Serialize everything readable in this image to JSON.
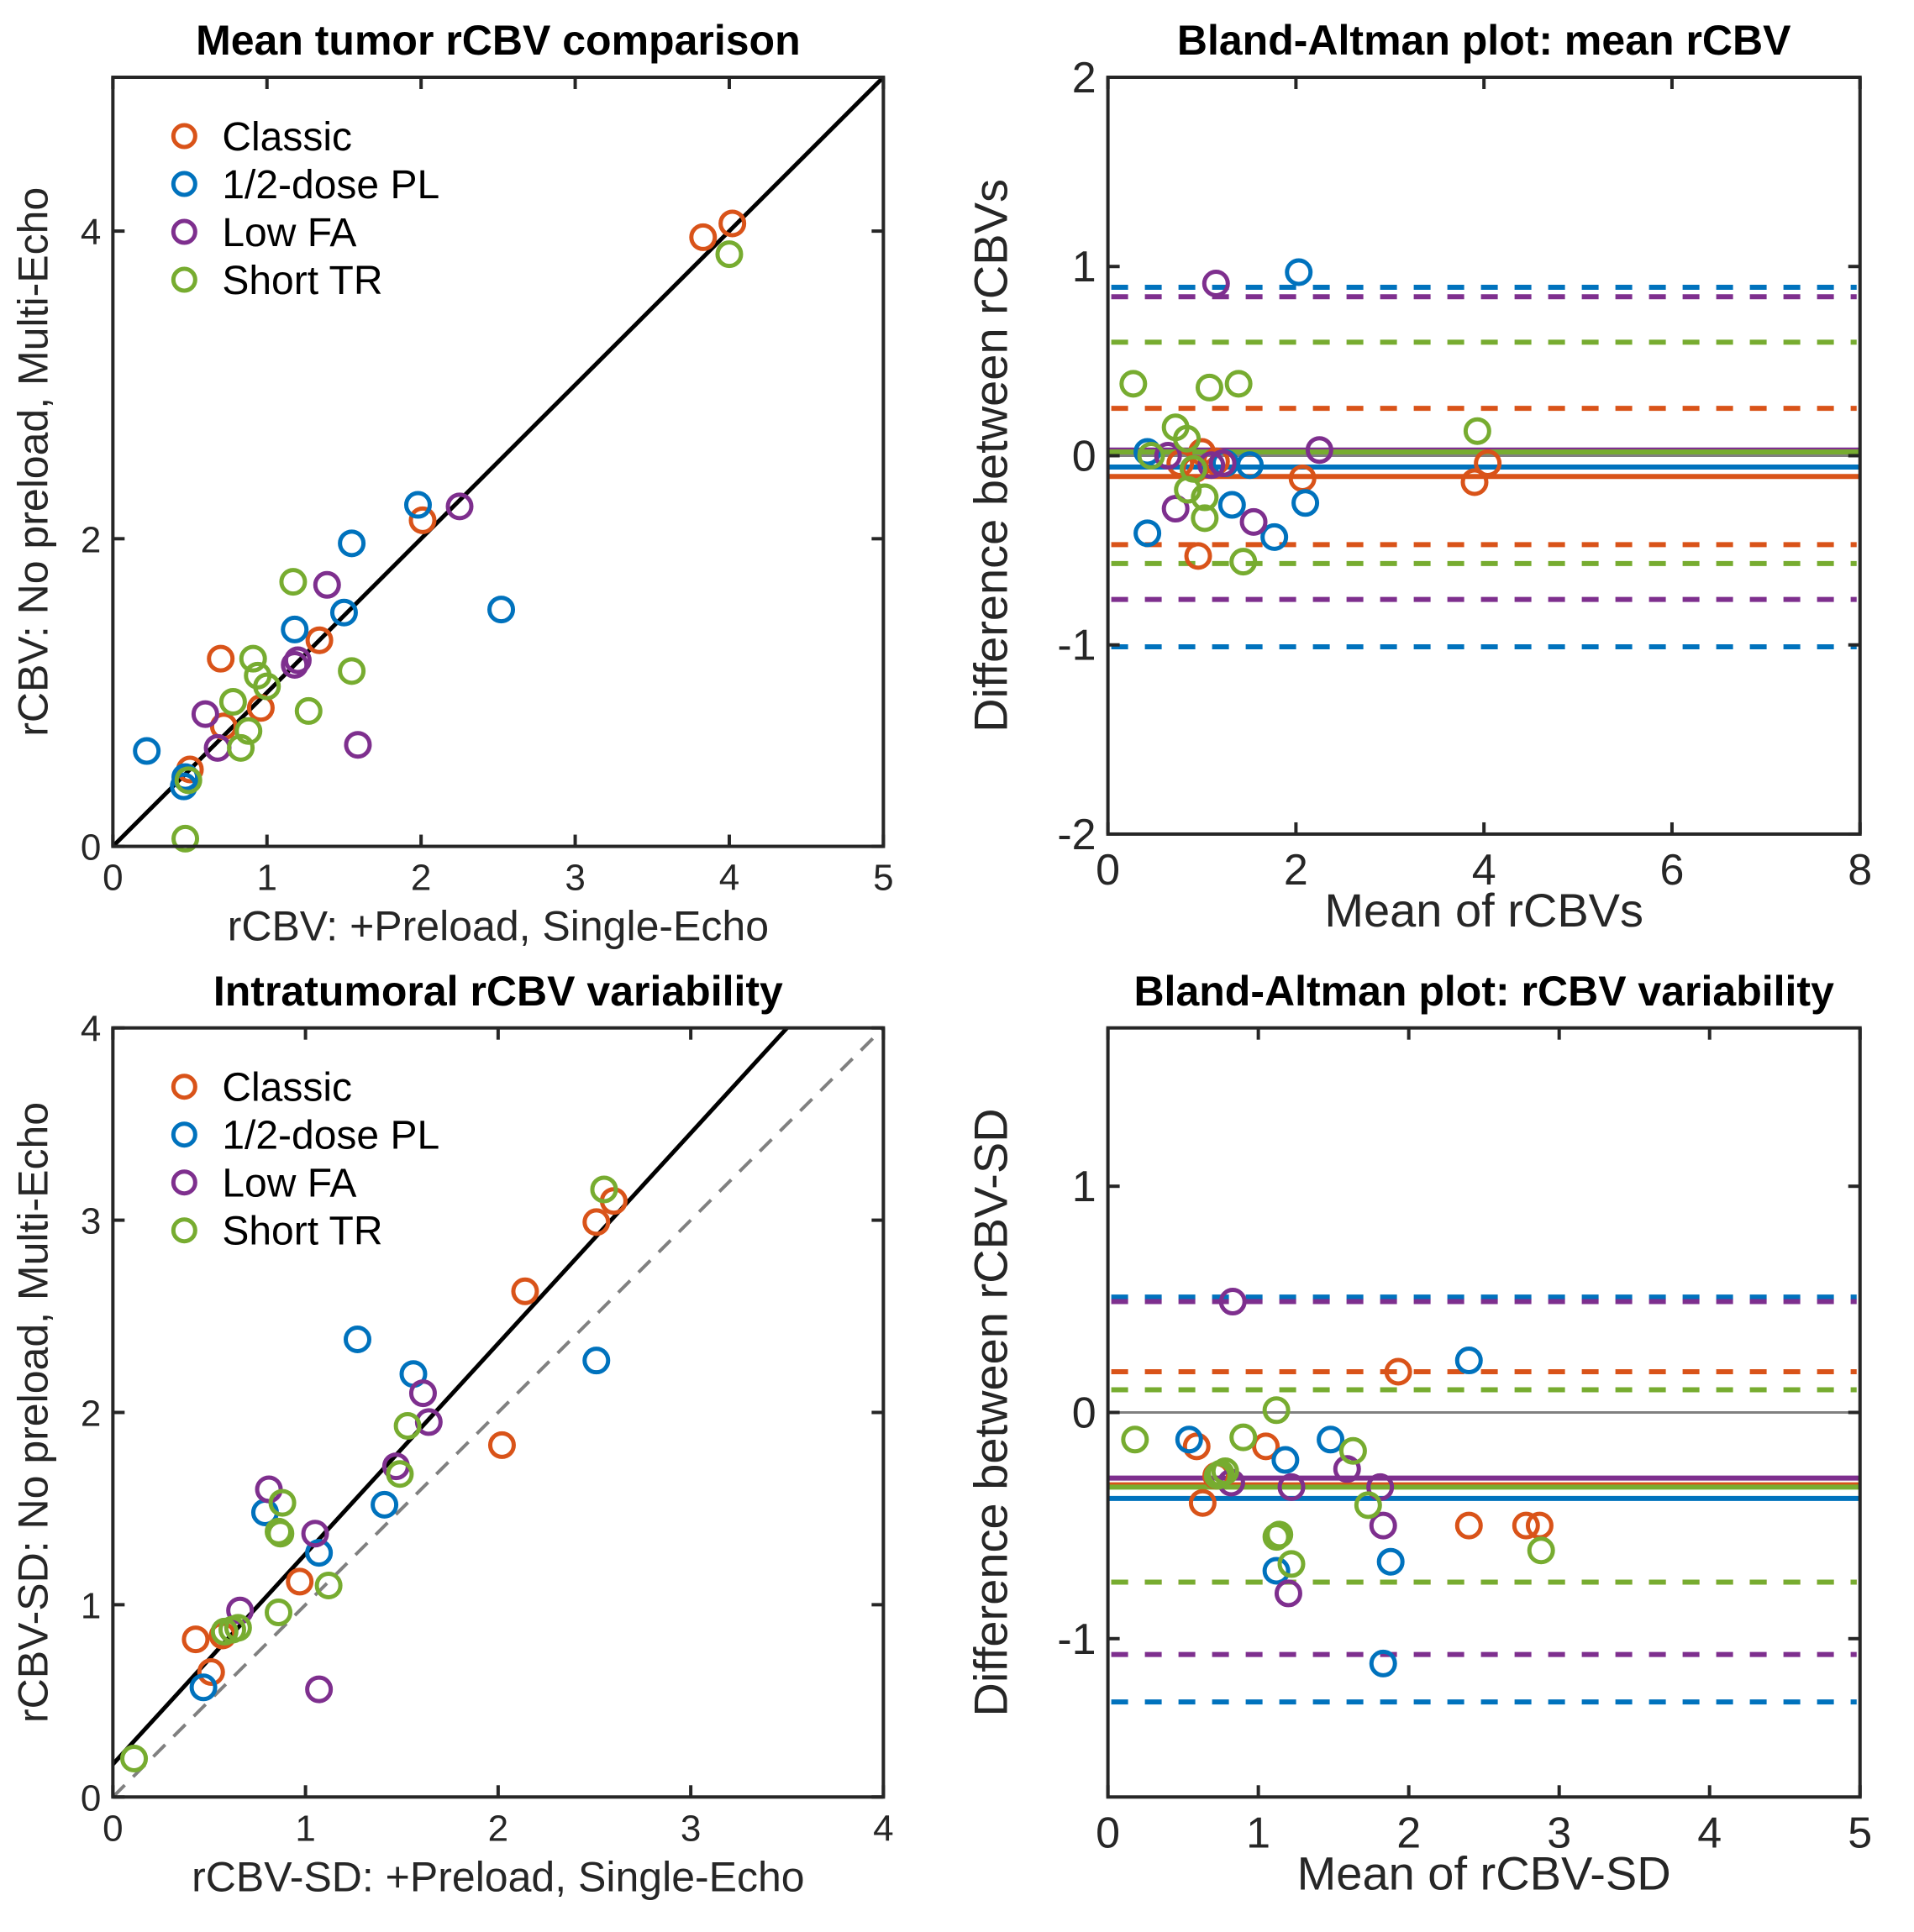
{
  "colors": {
    "Classic": "#D95319",
    "1/2-dose PL": "#0072BD",
    "Low FA": "#7E2F8E",
    "Short TR": "#77AC30",
    "axis": "#262626",
    "identity": "#808080",
    "fit": "#000000"
  },
  "chart_data": [
    {
      "id": "mean-scatter",
      "type": "scatter",
      "title": "Mean tumor rCBV comparison",
      "xlabel": "rCBV: +Preload, Single-Echo",
      "ylabel": "rCBV: No preload, Multi-Echo",
      "xlim": [
        0,
        5
      ],
      "ylim": [
        0,
        5
      ],
      "xticks": [
        0,
        1,
        2,
        3,
        4,
        5
      ],
      "yticks": [
        0,
        2,
        4
      ],
      "grid": false,
      "legend": "top-left",
      "identity_line": {
        "x": [
          0,
          5
        ],
        "y": [
          0,
          5
        ],
        "style": "dashed"
      },
      "fit_line": {
        "x": [
          0,
          5
        ],
        "y": [
          0,
          5
        ],
        "style": "solid"
      },
      "series": [
        {
          "name": "Classic",
          "points": [
            [
              3.83,
              3.96
            ],
            [
              4.02,
              4.05
            ],
            [
              2.01,
              2.12
            ],
            [
              1.34,
              1.34
            ],
            [
              0.7,
              1.22
            ],
            [
              0.96,
              0.9
            ],
            [
              0.72,
              0.78
            ],
            [
              0.5,
              0.5
            ]
          ]
        },
        {
          "name": "1/2-dose PL",
          "points": [
            [
              1.98,
              2.22
            ],
            [
              1.55,
              1.97
            ],
            [
              2.52,
              1.54
            ],
            [
              1.5,
              1.52
            ],
            [
              1.18,
              1.41
            ],
            [
              0.22,
              0.62
            ],
            [
              0.46,
              0.39
            ],
            [
              0.47,
              0.45
            ]
          ]
        },
        {
          "name": "Low FA",
          "points": [
            [
              2.25,
              2.21
            ],
            [
              1.39,
              1.7
            ],
            [
              1.2,
              1.21
            ],
            [
              1.18,
              1.18
            ],
            [
              0.6,
              0.86
            ],
            [
              0.68,
              0.64
            ],
            [
              1.59,
              0.66
            ]
          ]
        },
        {
          "name": "Short TR",
          "points": [
            [
              4.0,
              3.85
            ],
            [
              1.17,
              1.72
            ],
            [
              0.91,
              1.22
            ],
            [
              0.94,
              1.11
            ],
            [
              1.0,
              1.04
            ],
            [
              0.78,
              0.94
            ],
            [
              1.27,
              0.88
            ],
            [
              1.55,
              1.14
            ],
            [
              0.88,
              0.75
            ],
            [
              0.83,
              0.64
            ],
            [
              0.49,
              0.43
            ],
            [
              0.47,
              0.05
            ]
          ]
        }
      ]
    },
    {
      "id": "mean-bland-altman",
      "type": "scatter",
      "title": "Bland-Altman plot: mean rCBV",
      "xlabel": "Mean of rCBVs",
      "ylabel": "Difference between rCBVs",
      "xlim": [
        0,
        8
      ],
      "ylim": [
        -2,
        2
      ],
      "xticks": [
        0,
        2,
        4,
        6,
        8
      ],
      "yticks": [
        -2,
        -1,
        0,
        1,
        2
      ],
      "grid": false,
      "zero_line": 0,
      "series": [
        {
          "name": "Classic",
          "mean": -0.11,
          "loa": [
            -0.47,
            0.25
          ],
          "points": [
            [
              3.9,
              -0.14
            ],
            [
              4.04,
              -0.04
            ],
            [
              2.07,
              -0.12
            ],
            [
              1.0,
              0.02
            ],
            [
              0.96,
              -0.53
            ],
            [
              0.77,
              -0.04
            ],
            [
              1.15,
              -0.03
            ],
            [
              0.93,
              -0.07
            ]
          ]
        },
        {
          "name": "1/2-dose PL",
          "mean": -0.06,
          "loa": [
            -1.01,
            0.89
          ],
          "points": [
            [
              2.03,
              0.97
            ],
            [
              0.42,
              0.02
            ],
            [
              0.42,
              -0.41
            ],
            [
              1.32,
              -0.26
            ],
            [
              1.51,
              -0.05
            ],
            [
              1.77,
              -0.43
            ],
            [
              2.1,
              -0.25
            ],
            [
              1.25,
              -0.04
            ]
          ]
        },
        {
          "name": "Low FA",
          "mean": 0.03,
          "loa": [
            -0.76,
            0.84
          ],
          "points": [
            [
              1.15,
              0.91
            ],
            [
              2.25,
              0.03
            ],
            [
              0.64,
              0.0
            ],
            [
              0.72,
              -0.28
            ],
            [
              1.22,
              -0.04
            ],
            [
              1.55,
              -0.35
            ],
            [
              1.1,
              -0.05
            ]
          ]
        },
        {
          "name": "Short TR",
          "mean": 0.02,
          "loa": [
            -0.57,
            0.6
          ],
          "points": [
            [
              0.27,
              0.38
            ],
            [
              1.08,
              0.36
            ],
            [
              1.39,
              0.38
            ],
            [
              3.93,
              0.13
            ],
            [
              0.72,
              0.15
            ],
            [
              0.84,
              0.09
            ],
            [
              0.46,
              0.0
            ],
            [
              0.85,
              -0.18
            ],
            [
              1.03,
              -0.22
            ],
            [
              1.03,
              -0.33
            ],
            [
              1.44,
              -0.56
            ],
            [
              0.91,
              -0.07
            ]
          ]
        }
      ]
    },
    {
      "id": "sd-scatter",
      "type": "scatter",
      "title": "Intratumoral rCBV variability",
      "xlabel": "rCBV-SD: +Preload, Single-Echo",
      "ylabel": "rCBV-SD: No preload, Multi-Echo",
      "xlim": [
        0,
        4
      ],
      "ylim": [
        0,
        4
      ],
      "xticks": [
        0,
        1,
        2,
        3,
        4
      ],
      "yticks": [
        0,
        1,
        2,
        3,
        4
      ],
      "grid": false,
      "legend": "top-left",
      "identity_line": {
        "x": [
          0,
          4
        ],
        "y": [
          0,
          4
        ],
        "style": "dashed"
      },
      "fit_line": {
        "x": [
          0,
          3.5
        ],
        "y": [
          0.17,
          4.0
        ],
        "style": "solid"
      },
      "series": [
        {
          "name": "Classic",
          "points": [
            [
              2.6,
              3.1
            ],
            [
              2.51,
              2.99
            ],
            [
              2.14,
              2.63
            ],
            [
              2.02,
              1.83
            ],
            [
              0.97,
              1.12
            ],
            [
              0.43,
              0.82
            ],
            [
              0.51,
              0.65
            ],
            [
              0.57,
              0.84
            ]
          ]
        },
        {
          "name": "1/2-dose PL",
          "points": [
            [
              1.27,
              2.38
            ],
            [
              2.51,
              2.27
            ],
            [
              1.56,
              2.2
            ],
            [
              0.79,
              1.48
            ],
            [
              1.41,
              1.52
            ],
            [
              1.07,
              1.27
            ],
            [
              0.47,
              0.57
            ]
          ]
        },
        {
          "name": "Low FA",
          "points": [
            [
              1.61,
              2.1
            ],
            [
              1.64,
              1.95
            ],
            [
              0.81,
              1.6
            ],
            [
              1.47,
              1.72
            ],
            [
              1.05,
              1.37
            ],
            [
              0.66,
              0.97
            ],
            [
              1.07,
              0.56
            ]
          ]
        },
        {
          "name": "Short TR",
          "points": [
            [
              2.55,
              3.16
            ],
            [
              1.53,
              1.93
            ],
            [
              1.49,
              1.68
            ],
            [
              0.88,
              1.53
            ],
            [
              0.86,
              1.38
            ],
            [
              0.87,
              1.37
            ],
            [
              1.12,
              1.1
            ],
            [
              0.86,
              0.96
            ],
            [
              0.62,
              0.87
            ],
            [
              0.58,
              0.86
            ],
            [
              0.65,
              0.88
            ],
            [
              0.11,
              0.2
            ]
          ]
        }
      ]
    },
    {
      "id": "sd-bland-altman",
      "type": "scatter",
      "title": "Bland-Altman plot: rCBV variability",
      "xlabel": "Mean of rCBV-SD",
      "ylabel": "Difference between rCBV-SD",
      "xlim": [
        0,
        5
      ],
      "ylim": [
        -1.7,
        1.7
      ],
      "xticks": [
        0,
        1,
        2,
        3,
        4,
        5
      ],
      "yticks": [
        -1,
        0,
        1
      ],
      "grid": false,
      "zero_line": 0,
      "series": [
        {
          "name": "Classic",
          "mean": -0.32,
          "loa": [
            -0.75,
            0.18
          ],
          "points": [
            [
              1.93,
              0.18
            ],
            [
              0.59,
              -0.15
            ],
            [
              1.05,
              -0.15
            ],
            [
              0.63,
              -0.4
            ],
            [
              2.4,
              -0.5
            ],
            [
              2.78,
              -0.5
            ],
            [
              2.87,
              -0.5
            ],
            [
              0.72,
              -0.28
            ]
          ]
        },
        {
          "name": "1/2-dose PL",
          "mean": -0.38,
          "loa": [
            -1.28,
            0.51
          ],
          "points": [
            [
              2.4,
              0.23
            ],
            [
              0.54,
              -0.12
            ],
            [
              1.48,
              -0.12
            ],
            [
              1.18,
              -0.21
            ],
            [
              1.12,
              -0.7
            ],
            [
              1.88,
              -0.66
            ],
            [
              1.83,
              -1.11
            ]
          ]
        },
        {
          "name": "Low FA",
          "mean": -0.29,
          "loa": [
            -1.07,
            0.49
          ],
          "points": [
            [
              0.83,
              0.49
            ],
            [
              1.22,
              -0.33
            ],
            [
              1.59,
              -0.25
            ],
            [
              1.81,
              -0.33
            ],
            [
              1.83,
              -0.5
            ],
            [
              0.82,
              -0.31
            ],
            [
              1.2,
              -0.8
            ]
          ]
        },
        {
          "name": "Short TR",
          "mean": -0.33,
          "loa": [
            -0.75,
            0.1
          ],
          "points": [
            [
              1.12,
              0.01
            ],
            [
              0.18,
              -0.12
            ],
            [
              0.9,
              -0.11
            ],
            [
              1.63,
              -0.17
            ],
            [
              0.75,
              -0.27
            ],
            [
              0.78,
              -0.26
            ],
            [
              1.73,
              -0.41
            ],
            [
              1.12,
              -0.55
            ],
            [
              1.14,
              -0.54
            ],
            [
              1.22,
              -0.67
            ],
            [
              2.88,
              -0.61
            ],
            [
              0.73,
              -0.28
            ]
          ]
        }
      ]
    }
  ],
  "legend": {
    "items": [
      "Classic",
      "1/2-dose PL",
      "Low FA",
      "Short TR"
    ]
  }
}
